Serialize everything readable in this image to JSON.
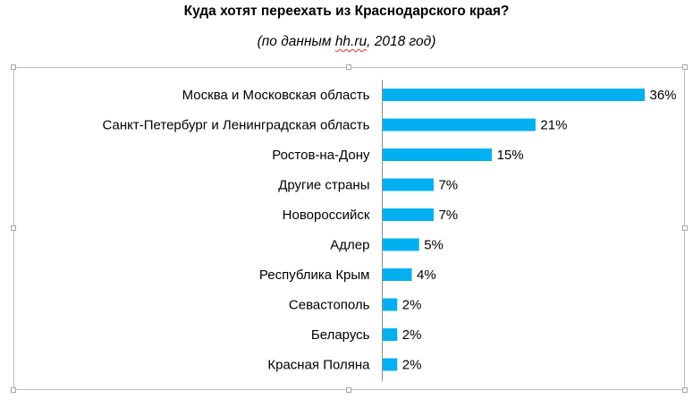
{
  "chart_data": {
    "type": "bar",
    "orientation": "horizontal",
    "title": "Куда хотят переехать из Краснодарского края?",
    "subtitle_parts": [
      "(по данным ",
      "hh.ru",
      ", 2018 год)"
    ],
    "categories": [
      "Москва и Московская область",
      "Санкт-Петербург и Ленинградская область",
      "Ростов-на-Дону",
      "Другие страны",
      "Новороссийск",
      "Адлер",
      "Республика Крым",
      "Севастополь",
      "Беларусь",
      "Красная Поляна"
    ],
    "values": [
      36,
      21,
      15,
      7,
      7,
      5,
      4,
      2,
      2,
      2
    ],
    "value_labels": [
      "36%",
      "21%",
      "15%",
      "7%",
      "7%",
      "5%",
      "4%",
      "2%",
      "2%",
      "2%"
    ],
    "unit": "%",
    "xlim": [
      0,
      36
    ],
    "grid": false,
    "legend": "none",
    "bar_color": "#00B0F0"
  }
}
